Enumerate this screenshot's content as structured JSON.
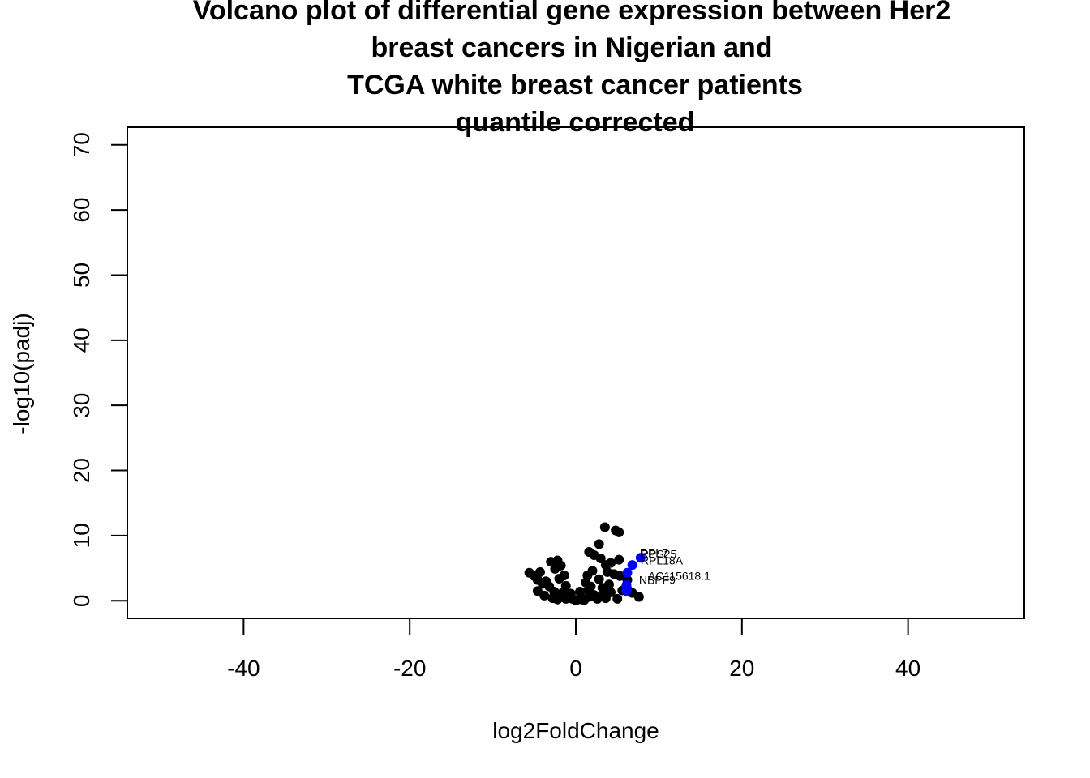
{
  "chart_data": {
    "type": "scatter",
    "title_lines": [
      "Volcano plot of differential gene expression between Her2",
      "breast cancers in Nigerian and",
      "TCGA white breast cancer patients",
      "quantile corrected"
    ],
    "xlabel": "log2FoldChange",
    "ylabel": "-log10(padj)",
    "xlim": [
      -54,
      54
    ],
    "ylim": [
      -2.7,
      72.7
    ],
    "x_ticks": [
      -40,
      -20,
      0,
      20,
      40
    ],
    "x_tick_labels": [
      "-40",
      "-20",
      "0",
      "20",
      "40"
    ],
    "y_ticks": [
      0,
      10,
      20,
      30,
      40,
      50,
      60,
      70
    ],
    "y_tick_labels": [
      "0",
      "10",
      "20",
      "30",
      "40",
      "50",
      "60",
      "70"
    ],
    "colors": {
      "default": "#000000",
      "highlight": "#0000ff"
    },
    "series": [
      {
        "color": "#000000",
        "x": [
          3.5,
          4.8,
          5.2,
          2.8,
          1.6,
          2.2,
          3.0,
          5.2,
          4.2,
          3.6,
          -2.2,
          -3.0,
          -1.8,
          -2.5,
          -5.6,
          -4.3,
          -5.0,
          -4.6,
          -3.6,
          -4.0,
          -3.2,
          -2.0,
          -1.4,
          -4.6,
          -2.6,
          -1.2,
          -0.6,
          1.4,
          2.0,
          3.8,
          4.6,
          5.3,
          6.2,
          6.8,
          7.6,
          1.2,
          2.8,
          3.2,
          0.5,
          1.5,
          2.2,
          4.2,
          -3.8,
          -2.8,
          -1.0,
          0.6,
          2.4,
          3.4,
          5.6,
          -0.4,
          0.3,
          -1.6,
          1.8,
          4.0,
          1.0,
          -0.8,
          0.0,
          2.6,
          -2.2,
          3.6,
          5.0,
          1.6,
          -1.2,
          0.8
        ],
        "y": [
          11.3,
          10.8,
          10.5,
          8.7,
          7.5,
          7.0,
          6.5,
          6.3,
          5.8,
          5.5,
          6.2,
          6.0,
          5.4,
          4.9,
          4.3,
          4.4,
          3.8,
          3.2,
          3.0,
          2.6,
          2.2,
          3.4,
          3.9,
          1.5,
          1.4,
          2.3,
          1.1,
          3.9,
          4.6,
          4.4,
          4.1,
          3.8,
          3.2,
          1.2,
          0.6,
          2.8,
          3.3,
          2.0,
          1.4,
          1.6,
          0.9,
          1.3,
          0.8,
          0.4,
          0.5,
          0.6,
          0.5,
          1.0,
          1.6,
          0.3,
          0.2,
          1.2,
          2.2,
          2.5,
          0.1,
          0.7,
          0.05,
          0.3,
          0.2,
          0.4,
          0.3,
          0.6,
          0.3,
          0.2
        ]
      },
      {
        "color": "#0000ff",
        "x": [
          7.8,
          6.8,
          6.2,
          6.1,
          6.2,
          6.1
        ],
        "y": [
          6.6,
          5.5,
          4.3,
          2.4,
          1.8,
          1.5
        ]
      }
    ],
    "labels": [
      {
        "text": "RPS25",
        "x": 7.8,
        "y": 6.6
      },
      {
        "text": "RPL7",
        "x": 7.7,
        "y": 6.7
      },
      {
        "text": "RPL18A",
        "x": 7.8,
        "y": 5.6
      },
      {
        "text": "AC115618.1",
        "x": 8.7,
        "y": 3.2
      },
      {
        "text": "NBPF9",
        "x": 7.6,
        "y": 2.6
      }
    ]
  }
}
